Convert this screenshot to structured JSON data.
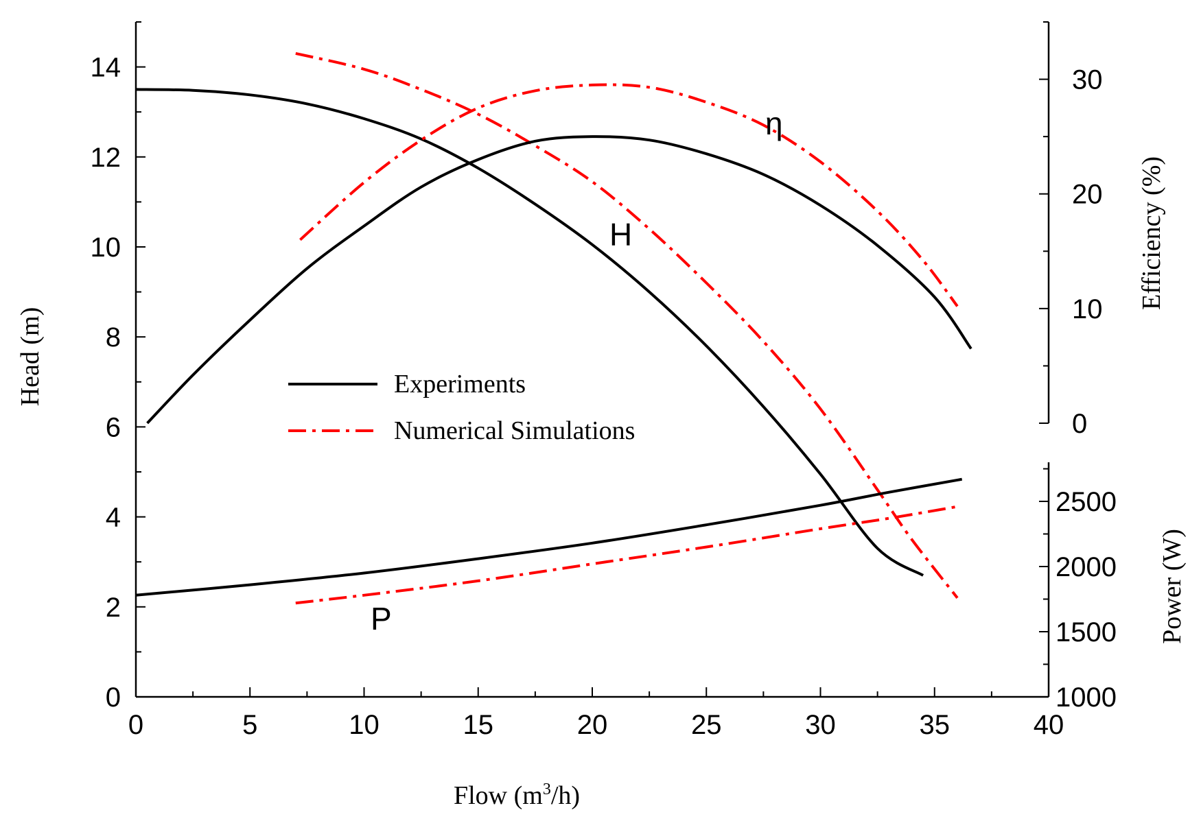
{
  "chart_data": {
    "type": "line",
    "x": {
      "label": "Flow (m",
      "label_sup": "3",
      "label_tail": "/h)",
      "range": [
        0,
        40
      ],
      "ticks": [
        0,
        5,
        10,
        15,
        20,
        25,
        30,
        35,
        40
      ],
      "tick_labels": [
        "0",
        "5",
        "10",
        "15",
        "20",
        "25",
        "30",
        "35",
        "40"
      ]
    },
    "y_head": {
      "label": "Head  (m)",
      "range": [
        0,
        15
      ],
      "ticks": [
        0,
        2,
        4,
        6,
        8,
        10,
        12,
        14
      ],
      "tick_labels": [
        "0",
        "2",
        "4",
        "6",
        "8",
        "10",
        "12",
        "14"
      ]
    },
    "y_efficiency": {
      "label": "Efficiency (%)",
      "range": [
        0,
        35
      ],
      "ticks": [
        0,
        10,
        20,
        30
      ],
      "tick_labels": [
        "0",
        "10",
        "20",
        "30"
      ]
    },
    "y_power": {
      "label": "Power (W)",
      "range": [
        1000,
        2800
      ],
      "ticks": [
        1000,
        1500,
        2000,
        2500
      ],
      "tick_labels": [
        "1000",
        "1500",
        "2000",
        "2500"
      ]
    },
    "legend": {
      "position": "center-left",
      "entries": [
        {
          "name": "Experiments",
          "color": "#000000",
          "style": "solid"
        },
        {
          "name": "Numerical Simulations",
          "color": "#ff0000",
          "style": "dash-dot"
        }
      ]
    },
    "curve_labels": {
      "head": "H",
      "efficiency": "η",
      "power": "P"
    },
    "series": [
      {
        "name": "Experiments",
        "quantity": "Head",
        "axis": "y_head",
        "color": "#000000",
        "style": "solid",
        "x": [
          0,
          2.5,
          5,
          7.5,
          10,
          12.5,
          15,
          17.5,
          20,
          22.5,
          25,
          27.5,
          30,
          32.5,
          34.5
        ],
        "y": [
          13.5,
          13.48,
          13.38,
          13.18,
          12.85,
          12.4,
          11.75,
          10.95,
          10.05,
          9.0,
          7.8,
          6.45,
          4.95,
          3.3,
          2.7
        ]
      },
      {
        "name": "Numerical Simulations",
        "quantity": "Head",
        "axis": "y_head",
        "color": "#ff0000",
        "style": "dash-dot",
        "x": [
          7,
          10,
          12.5,
          15,
          17.5,
          20,
          22.5,
          25,
          27.5,
          30,
          32.5,
          34,
          36
        ],
        "y": [
          14.3,
          13.95,
          13.5,
          12.95,
          12.25,
          11.45,
          10.4,
          9.2,
          7.9,
          6.4,
          4.6,
          3.5,
          2.2
        ]
      },
      {
        "name": "Experiments",
        "quantity": "Efficiency",
        "axis": "y_efficiency",
        "color": "#000000",
        "style": "solid",
        "x": [
          0.5,
          2.5,
          5,
          7.5,
          10,
          12.5,
          15,
          17.5,
          20,
          22.5,
          25,
          27.5,
          30,
          32.5,
          35,
          36.6
        ],
        "y": [
          0,
          4.2,
          9.0,
          13.5,
          17.2,
          20.6,
          23.0,
          24.6,
          25.0,
          24.7,
          23.5,
          21.7,
          19.0,
          15.5,
          11.0,
          6.5
        ]
      },
      {
        "name": "Numerical Simulations",
        "quantity": "Efficiency",
        "axis": "y_efficiency",
        "color": "#ff0000",
        "style": "dash-dot",
        "x": [
          7.2,
          10,
          12.5,
          15,
          17.5,
          20,
          22.5,
          25,
          27.5,
          30,
          32.5,
          34.5,
          36
        ],
        "y": [
          16.0,
          21.0,
          24.7,
          27.5,
          29.0,
          29.5,
          29.3,
          28.0,
          26.0,
          22.8,
          18.5,
          14.2,
          10.2
        ]
      },
      {
        "name": "Experiments",
        "quantity": "Power",
        "axis": "y_power",
        "color": "#000000",
        "style": "solid",
        "x": [
          0,
          5,
          10,
          15,
          20,
          25,
          30,
          33,
          36.2
        ],
        "y": [
          1780,
          1860,
          1950,
          2060,
          2180,
          2320,
          2470,
          2570,
          2670
        ]
      },
      {
        "name": "Numerical Simulations",
        "quantity": "Power",
        "axis": "y_power",
        "color": "#ff0000",
        "style": "dash-dot",
        "x": [
          7,
          10,
          15,
          20,
          25,
          30,
          33,
          36
        ],
        "y": [
          1720,
          1780,
          1890,
          2020,
          2150,
          2290,
          2370,
          2460
        ]
      }
    ]
  }
}
